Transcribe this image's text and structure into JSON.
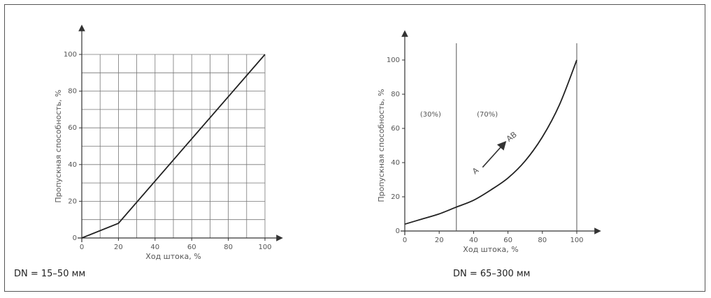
{
  "chart_data": [
    {
      "type": "line",
      "title": "",
      "xlabel": "Ход штока, %",
      "ylabel": "Пропускная способность, %",
      "xlim": [
        0,
        100
      ],
      "ylim": [
        0,
        100
      ],
      "x_ticks": [
        "0",
        "20",
        "40",
        "60",
        "80",
        "100"
      ],
      "y_ticks": [
        "0",
        "20",
        "40",
        "60",
        "80",
        "100"
      ],
      "grid": true,
      "series": [
        {
          "x": [
            0,
            20,
            100
          ],
          "y": [
            0,
            8,
            100
          ]
        }
      ],
      "caption": "DN = 15–50 мм"
    },
    {
      "type": "line",
      "title": "",
      "xlabel": "Ход штока, %",
      "ylabel": "Пропускная способность, %",
      "xlim": [
        0,
        100
      ],
      "ylim": [
        0,
        100
      ],
      "x_ticks": [
        "0",
        "20",
        "40",
        "60",
        "80",
        "100"
      ],
      "y_ticks": [
        "0",
        "20",
        "40",
        "60",
        "80",
        "100"
      ],
      "grid": false,
      "series": [
        {
          "x": [
            0,
            10,
            20,
            30,
            40,
            50,
            60,
            70,
            80,
            90,
            100
          ],
          "y": [
            4,
            7,
            10,
            14,
            18,
            24,
            31,
            41,
            55,
            74,
            100
          ]
        }
      ],
      "annotations": [
        "(30%)",
        "(70%)",
        "A",
        "AB"
      ],
      "vline_x": [
        30,
        100
      ],
      "caption": "DN = 65–300 мм"
    }
  ]
}
